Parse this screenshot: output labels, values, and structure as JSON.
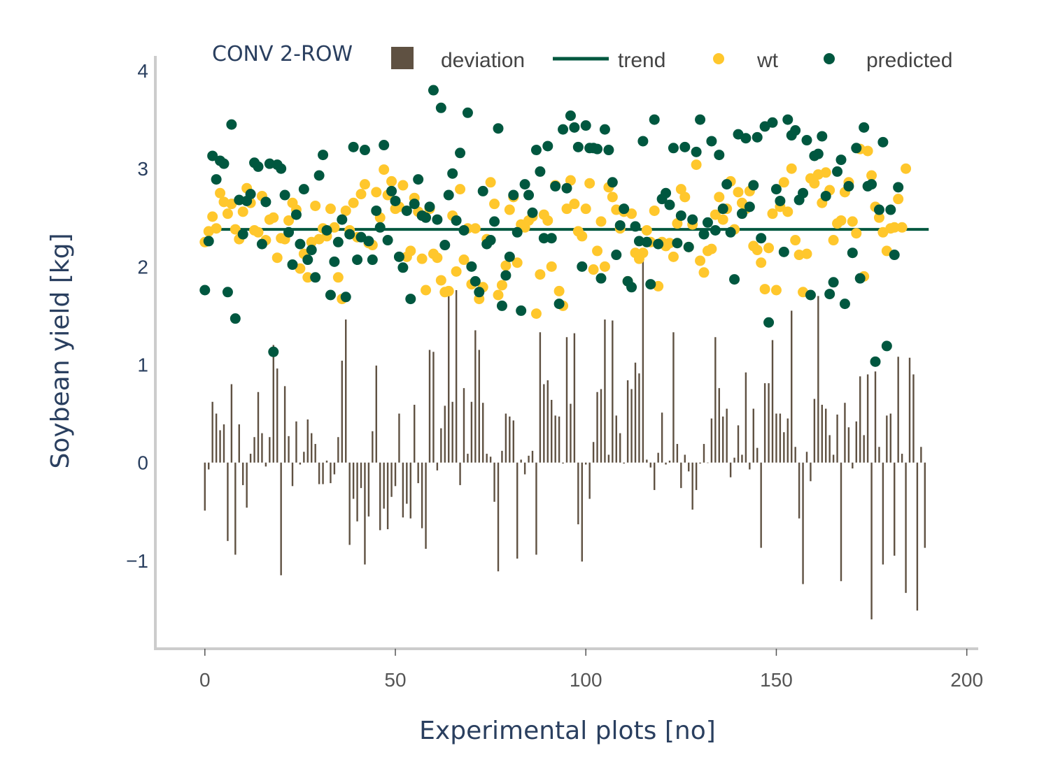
{
  "chart_data": {
    "type": "bar+line+scatter",
    "title": "",
    "xlabel": "Experimental plots [no]",
    "ylabel": "Soybean yield [kg]",
    "xlim": [
      -13,
      203
    ],
    "ylim": [
      -1.9,
      4.15
    ],
    "x_ticks": [
      0,
      50,
      100,
      150,
      200
    ],
    "y_ticks": [
      -1,
      0,
      1,
      2,
      3,
      4
    ],
    "y_tick_labels": [
      "−1",
      "0",
      "1",
      "2",
      "3",
      "4"
    ],
    "grid": false,
    "legend_title": "CONV 2-ROW",
    "legend_placement": "top",
    "colors": {
      "deviation": "#5f5142",
      "trend": "#00573f",
      "wt": "#ffc72c",
      "predicted": "#00573f"
    },
    "series": [
      {
        "name": "deviation",
        "type": "bar",
        "x_start": 0,
        "values": [
          -0.49,
          -0.07,
          0.62,
          0.5,
          0.33,
          0.39,
          -0.8,
          0.8,
          -0.94,
          0.39,
          -0.23,
          -0.46,
          0.09,
          0.26,
          0.72,
          0.3,
          -0.04,
          0.26,
          1.2,
          0.96,
          -1.15,
          0.78,
          0.27,
          -0.24,
          0.42,
          -0.02,
          0.11,
          0.44,
          0.3,
          0.19,
          -0.22,
          -0.22,
          0.02,
          -0.21,
          -0.12,
          0.26,
          1.04,
          1.46,
          -0.84,
          -0.37,
          -0.6,
          -0.26,
          -1.04,
          -0.55,
          0.32,
          0.99,
          -0.69,
          -0.47,
          -0.68,
          -0.35,
          -0.24,
          0.5,
          -0.56,
          -0.42,
          -0.57,
          0.59,
          -0.21,
          -0.67,
          -0.88,
          1.15,
          1.13,
          -0.08,
          0.35,
          0.58,
          1.74,
          0.62,
          1.76,
          -0.23,
          0.76,
          0.09,
          0.62,
          1.35,
          1.15,
          0.61,
          0.09,
          0.06,
          -0.4,
          -1.11,
          0.12,
          0.5,
          0.47,
          0.43,
          -0.98,
          0.03,
          -0.12,
          0.07,
          0.12,
          -0.94,
          1.33,
          0.8,
          0.84,
          0.64,
          0.48,
          0.47,
          -0.01,
          1.28,
          0.6,
          1.32,
          -0.63,
          -1.01,
          -0.02,
          -0.37,
          0.21,
          0.72,
          0.75,
          1.46,
          0.08,
          1.45,
          0.48,
          0.3,
          -0.01,
          0.84,
          0.75,
          1.02,
          0.91,
          2.07,
          0.03,
          -0.05,
          -0.28,
          0.1,
          0.51,
          -0.02,
          0.02,
          1.33,
          0.19,
          -0.26,
          0.08,
          -0.09,
          -0.48,
          -0.28,
          -0.01,
          0.19,
          0.0,
          0.45,
          1.28,
          0.76,
          0.47,
          0.55,
          -0.15,
          0.05,
          0.38,
          0.08,
          0.92,
          -0.07,
          0.55,
          0.15,
          -0.87,
          0.81,
          0.81,
          1.25,
          0.5,
          0.5,
          0.31,
          0.45,
          1.55,
          0.16,
          -0.57,
          -1.24,
          0.11,
          -0.19,
          0.65,
          1.7,
          0.59,
          0.55,
          0.28,
          0.08,
          0.49,
          -1.21,
          0.61,
          0.36,
          -0.06,
          0.42,
          0.88,
          0.28,
          0.9,
          -1.6,
          0.93,
          0.16,
          -1.04,
          0.48,
          0.5,
          -0.95,
          1.08,
          0.09,
          -1.33,
          1.07,
          0.9,
          -1.51,
          0.16,
          -0.87
        ]
      },
      {
        "name": "trend",
        "type": "line",
        "x": [
          0,
          190
        ],
        "values": [
          2.38,
          2.38
        ]
      },
      {
        "name": "wt",
        "type": "scatter",
        "x_start": 0,
        "values": [
          2.25,
          2.36,
          2.51,
          2.39,
          2.75,
          2.66,
          2.54,
          2.64,
          2.38,
          2.28,
          2.56,
          2.8,
          2.65,
          2.37,
          2.35,
          2.72,
          2.27,
          2.48,
          2.5,
          2.09,
          2.29,
          2.28,
          2.47,
          2.65,
          2.58,
          1.98,
          2.13,
          1.89,
          2.25,
          2.62,
          2.28,
          2.39,
          2.31,
          2.59,
          2.4,
          1.89,
          1.67,
          2.57,
          2.37,
          2.65,
          2.3,
          2.74,
          2.84,
          2.24,
          2.22,
          2.76,
          2.5,
          2.99,
          2.73,
          2.87,
          2.59,
          2.61,
          2.83,
          2.1,
          2.16,
          2.7,
          2.56,
          2.08,
          1.76,
          2.59,
          2.13,
          2.09,
          1.86,
          1.74,
          1.75,
          2.52,
          1.95,
          2.79,
          2.07,
          2.39,
          1.82,
          2.39,
          1.67,
          1.79,
          2.28,
          2.86,
          2.64,
          1.71,
          1.81,
          2.01,
          2.58,
          2.71,
          2.04,
          2.43,
          2.4,
          2.47,
          2.51,
          1.52,
          1.92,
          2.53,
          2.47,
          2.0,
          2.83,
          1.75,
          1.6,
          2.59,
          2.88,
          2.64,
          2.36,
          2.31,
          2.59,
          2.85,
          1.97,
          2.16,
          2.46,
          2.0,
          2.81,
          2.71,
          2.58,
          2.39,
          2.56,
          1.85,
          2.54,
          2.14,
          2.08,
          2.14,
          2.37,
          2.25,
          2.57,
          1.8,
          2.25,
          2.21,
          2.24,
          2.1,
          2.44,
          2.79,
          2.71,
          2.2,
          2.43,
          3.04,
          2.06,
          1.94,
          2.16,
          2.18,
          2.53,
          2.71,
          2.48,
          2.59,
          2.87,
          2.38,
          2.76,
          2.65,
          2.59,
          2.77,
          2.21,
          2.17,
          2.04,
          1.77,
          2.19,
          2.54,
          1.76,
          2.61,
          2.86,
          2.56,
          3.0,
          2.27,
          2.12,
          1.74,
          2.13,
          2.9,
          2.85,
          2.94,
          2.65,
          2.96,
          2.78,
          2.27,
          2.44,
          2.47,
          2.76,
          2.86,
          2.46,
          2.34,
          3.2,
          1.9,
          3.18,
          2.93,
          2.61,
          2.5,
          2.35,
          2.16,
          2.39,
          2.4,
          2.69,
          2.4,
          3.0
        ]
      },
      {
        "name": "predicted",
        "type": "scatter",
        "x_start": 0,
        "values": [
          1.76,
          2.26,
          3.13,
          2.89,
          3.08,
          3.05,
          1.74,
          3.45,
          1.47,
          2.68,
          2.33,
          2.67,
          2.74,
          3.06,
          3.02,
          2.23,
          2.66,
          3.05,
          1.13,
          3.04,
          3.0,
          2.73,
          2.35,
          2.02,
          2.53,
          2.23,
          2.79,
          2.07,
          2.17,
          1.89,
          2.93,
          3.14,
          2.37,
          1.71,
          2.05,
          2.25,
          2.48,
          1.69,
          2.33,
          3.22,
          2.07,
          2.3,
          3.19,
          2.26,
          2.07,
          2.57,
          2.4,
          3.24,
          2.27,
          2.77,
          2.67,
          2.1,
          1.99,
          2.57,
          1.67,
          2.64,
          2.89,
          2.52,
          2.5,
          2.61,
          3.8,
          2.48,
          3.62,
          2.22,
          2.73,
          2.95,
          2.47,
          3.16,
          2.37,
          3.57,
          2.0,
          1.85,
          1.74,
          2.77,
          2.23,
          2.27,
          2.46,
          3.41,
          1.6,
          1.91,
          2.1,
          2.73,
          2.35,
          1.55,
          2.84,
          2.73,
          2.55,
          3.19,
          2.97,
          2.29,
          3.23,
          2.29,
          2.82,
          1.62,
          3.4,
          2.8,
          3.54,
          3.42,
          3.22,
          2.0,
          3.44,
          3.21,
          3.21,
          3.2,
          1.88,
          3.4,
          3.19,
          2.86,
          2.12,
          2.42,
          2.59,
          1.85,
          1.79,
          2.41,
          2.26,
          3.28,
          2.25,
          1.82,
          3.5,
          2.23,
          2.69,
          2.75,
          2.63,
          3.21,
          2.24,
          2.52,
          3.22,
          2.2,
          2.48,
          3.17,
          3.5,
          2.33,
          2.45,
          3.28,
          2.37,
          3.14,
          2.59,
          2.84,
          2.35,
          1.87,
          3.35,
          2.54,
          3.31,
          2.61,
          2.83,
          3.32,
          2.29,
          3.43,
          1.43,
          3.47,
          2.79,
          2.67,
          2.15,
          3.5,
          3.34,
          3.39,
          2.68,
          2.75,
          3.29,
          1.71,
          3.13,
          3.15,
          3.33,
          2.72,
          1.72,
          1.84,
          2.97,
          3.09,
          1.62,
          2.82,
          2.14,
          3.21,
          1.88,
          3.42,
          2.82,
          2.84,
          1.03,
          2.58,
          3.27,
          1.19,
          2.58,
          2.12,
          2.81
        ]
      }
    ]
  }
}
